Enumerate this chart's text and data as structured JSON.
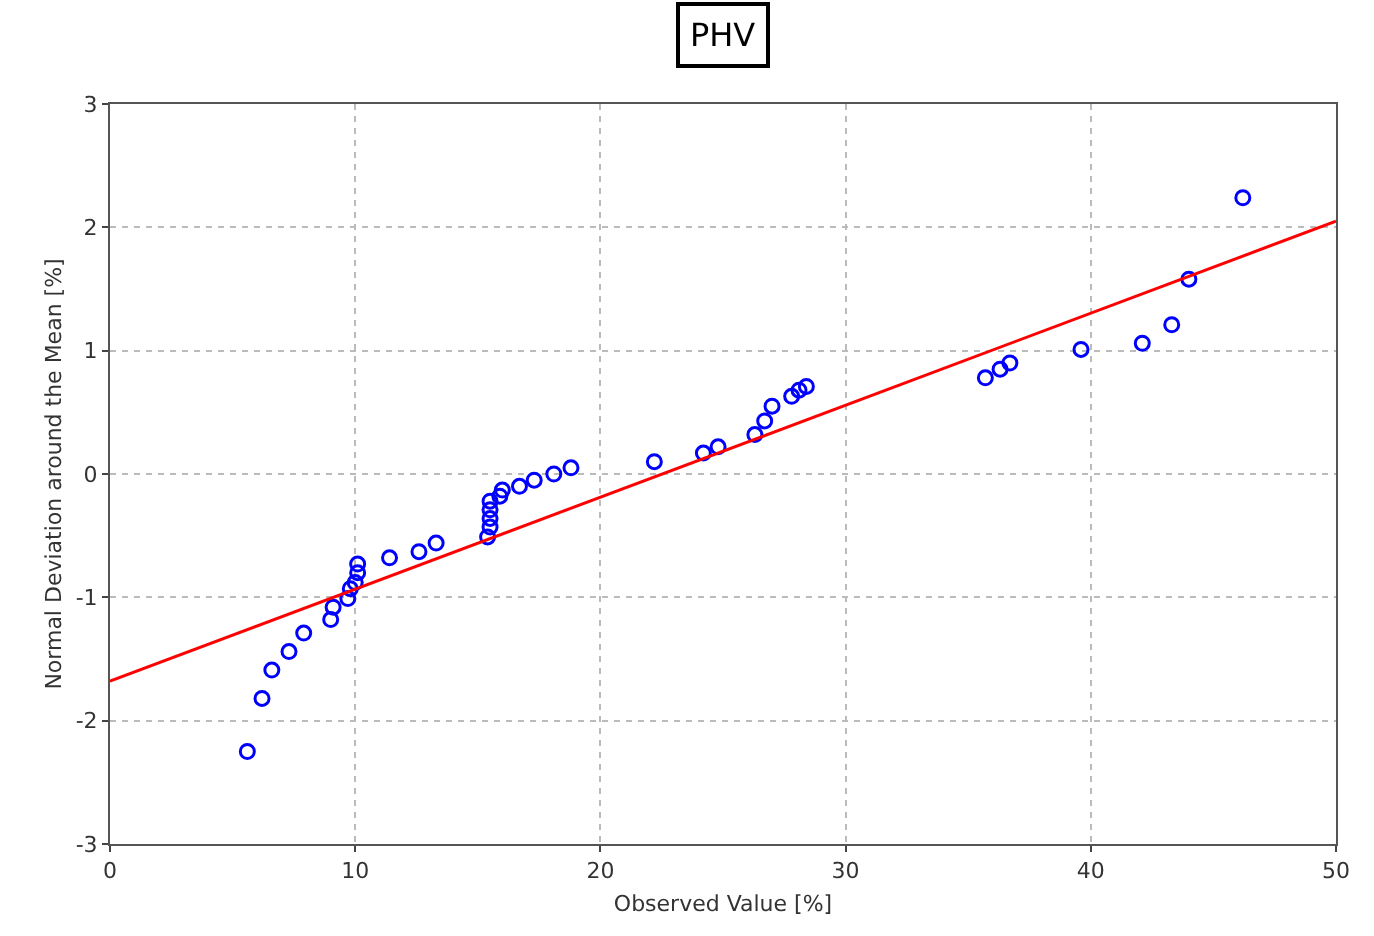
{
  "chart_data": {
    "type": "scatter",
    "title": "PHV",
    "xlabel": "Observed Value [%]",
    "ylabel": "Normal Deviation around the Mean [%]",
    "xlim": [
      0,
      50
    ],
    "ylim": [
      -3,
      3
    ],
    "xticks": [
      0,
      10,
      20,
      30,
      40,
      50
    ],
    "yticks": [
      -3,
      -2,
      -1,
      0,
      1,
      2,
      3
    ],
    "grid": true,
    "marker": "circle",
    "series": [
      {
        "color": "#0000ff",
        "x": [
          5.6,
          6.2,
          6.6,
          7.3,
          7.9,
          9.0,
          9.1,
          9.7,
          9.8,
          10.0,
          10.1,
          10.1,
          11.4,
          12.6,
          13.3,
          15.4,
          15.5,
          15.5,
          15.5,
          15.5,
          15.9,
          16.0,
          16.7,
          17.3,
          18.1,
          18.8,
          22.2,
          24.2,
          24.8,
          26.3,
          26.7,
          27.0,
          27.8,
          28.1,
          28.4,
          35.7,
          36.3,
          36.7,
          39.6,
          42.1,
          43.3,
          44.0,
          46.2
        ],
        "values": [
          -2.25,
          -1.82,
          -1.59,
          -1.44,
          -1.29,
          -1.18,
          -1.08,
          -1.01,
          -0.93,
          -0.88,
          -0.8,
          -0.73,
          -0.68,
          -0.63,
          -0.56,
          -0.51,
          -0.43,
          -0.36,
          -0.29,
          -0.22,
          -0.18,
          -0.13,
          -0.1,
          -0.05,
          0.0,
          0.05,
          0.1,
          0.17,
          0.22,
          0.32,
          0.43,
          0.55,
          0.63,
          0.68,
          0.71,
          0.78,
          0.85,
          0.9,
          1.01,
          1.06,
          1.21,
          1.58,
          2.24
        ]
      },
      {
        "type": "line",
        "marker": "none",
        "color": "#ff0000",
        "x": [
          0,
          50
        ],
        "values": [
          -1.68,
          2.05
        ]
      }
    ]
  }
}
